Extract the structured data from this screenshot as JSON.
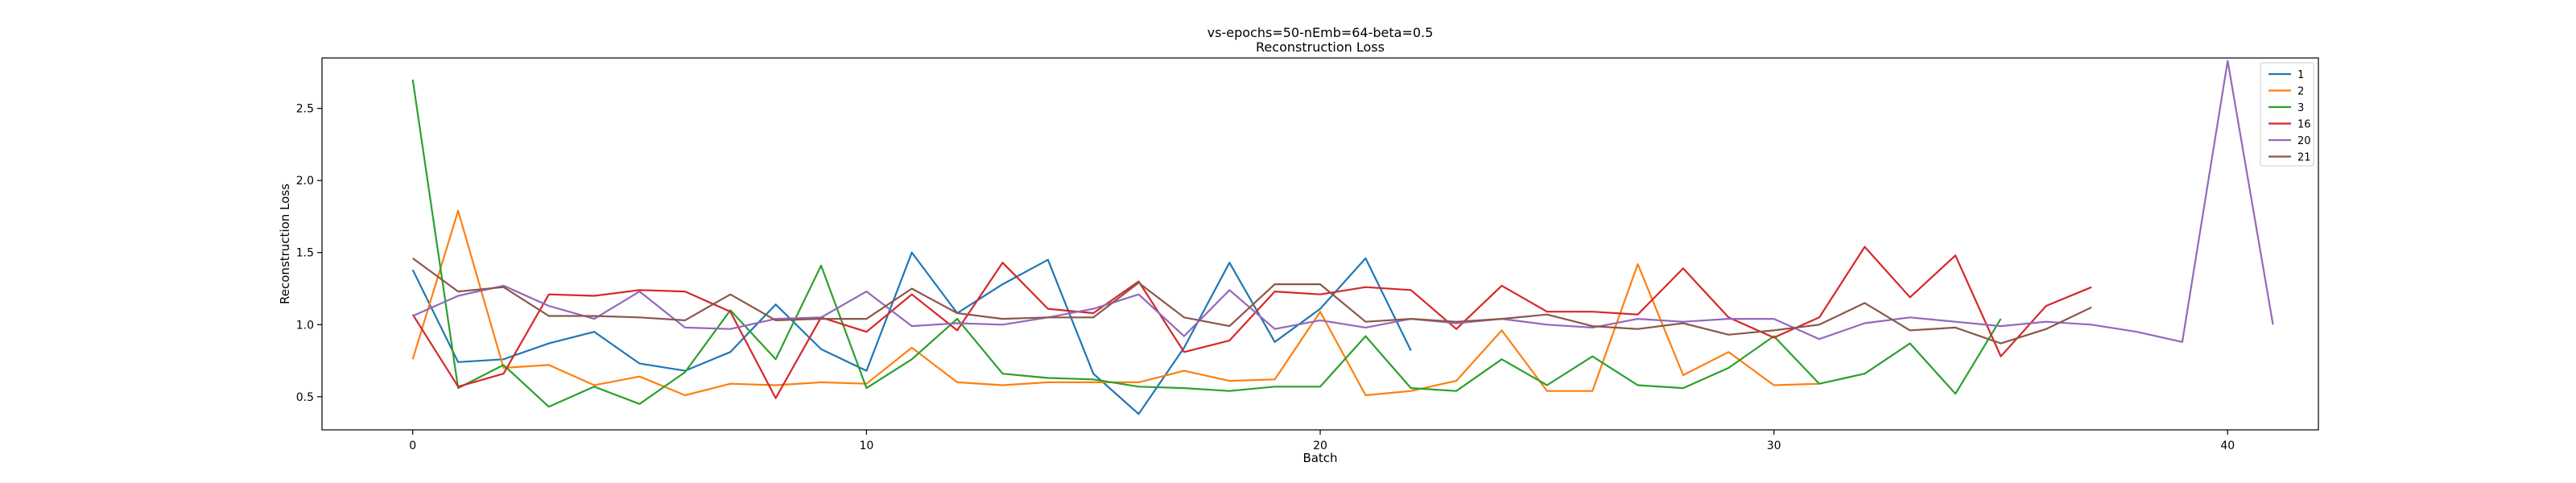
{
  "chart_data": {
    "type": "line",
    "title_line1": "vs-epochs=50-nEmb=64-beta=0.5",
    "title_line2": "Reconstruction Loss",
    "xlabel": "Batch",
    "ylabel": "Reconstruction Loss",
    "xlim": [
      -2,
      42
    ],
    "ylim": [
      0.27,
      2.85
    ],
    "xticks": [
      0,
      10,
      20,
      30,
      40
    ],
    "yticks": [
      0.5,
      1.0,
      1.5,
      2.0,
      2.5
    ],
    "ytick_labels": [
      "0.5",
      "1.0",
      "1.5",
      "2.0",
      "2.5"
    ],
    "grid": false,
    "legend_position": "top-right",
    "series": [
      {
        "name": "1",
        "color": "#1f77b4",
        "values": [
          1.38,
          0.74,
          0.76,
          0.87,
          0.95,
          0.73,
          0.68,
          0.81,
          1.14,
          0.83,
          0.68,
          1.5,
          1.08,
          1.28,
          1.45,
          0.66,
          0.38,
          0.84,
          1.43,
          0.88,
          1.11,
          1.46,
          0.82
        ]
      },
      {
        "name": "2",
        "color": "#ff7f0e",
        "values": [
          0.76,
          1.79,
          0.7,
          0.72,
          0.58,
          0.64,
          0.51,
          0.59,
          0.58,
          0.6,
          0.59,
          0.84,
          0.6,
          0.58,
          0.6,
          0.6,
          0.6,
          0.68,
          0.61,
          0.62,
          1.09,
          0.51,
          0.54,
          0.61,
          0.96,
          0.54,
          0.54,
          1.42,
          0.65,
          0.81,
          0.58,
          0.59
        ]
      },
      {
        "name": "3",
        "color": "#2ca02c",
        "values": [
          2.7,
          0.56,
          0.72,
          0.43,
          0.57,
          0.45,
          0.67,
          1.1,
          0.76,
          1.41,
          0.56,
          0.76,
          1.04,
          0.66,
          0.63,
          0.62,
          0.57,
          0.56,
          0.54,
          0.57,
          0.57,
          0.92,
          0.56,
          0.54,
          0.76,
          0.58,
          0.78,
          0.58,
          0.56,
          0.7,
          0.92,
          0.59,
          0.66,
          0.87,
          0.52,
          1.04
        ]
      },
      {
        "name": "16",
        "color": "#d62728",
        "values": [
          1.07,
          0.57,
          0.66,
          1.21,
          1.2,
          1.24,
          1.23,
          1.09,
          0.49,
          1.05,
          0.95,
          1.21,
          0.96,
          1.43,
          1.11,
          1.08,
          1.3,
          0.81,
          0.89,
          1.23,
          1.21,
          1.26,
          1.24,
          0.97,
          1.27,
          1.09,
          1.09,
          1.07,
          1.39,
          1.05,
          0.91,
          1.05,
          1.54,
          1.19,
          1.48,
          0.78,
          1.13,
          1.26
        ]
      },
      {
        "name": "20",
        "color": "#9467bd",
        "values": [
          1.06,
          1.2,
          1.27,
          1.13,
          1.04,
          1.23,
          0.98,
          0.97,
          1.04,
          1.05,
          1.23,
          0.99,
          1.01,
          1.0,
          1.05,
          1.11,
          1.21,
          0.92,
          1.24,
          0.97,
          1.03,
          0.98,
          1.04,
          1.01,
          1.04,
          1.0,
          0.98,
          1.04,
          1.02,
          1.04,
          1.04,
          0.9,
          1.01,
          1.05,
          1.02,
          0.99,
          1.02,
          1.0,
          0.95,
          0.88,
          2.83,
          1.0
        ]
      },
      {
        "name": "21",
        "color": "#8c564b",
        "values": [
          1.46,
          1.23,
          1.26,
          1.06,
          1.06,
          1.05,
          1.03,
          1.21,
          1.03,
          1.04,
          1.04,
          1.25,
          1.08,
          1.04,
          1.05,
          1.05,
          1.29,
          1.05,
          0.99,
          1.28,
          1.28,
          1.02,
          1.04,
          1.02,
          1.04,
          1.07,
          0.99,
          0.97,
          1.01,
          0.93,
          0.96,
          1.0,
          1.15,
          0.96,
          0.98,
          0.87,
          0.97,
          1.12
        ]
      }
    ]
  }
}
